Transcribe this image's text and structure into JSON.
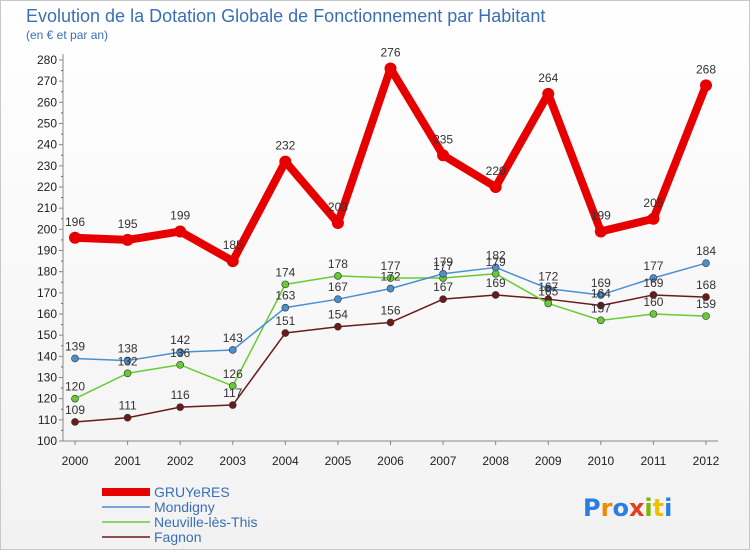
{
  "chart_data": {
    "type": "line",
    "title": "Evolution de la Dotation Globale de Fonctionnement par Habitant",
    "subtitle": "(en € et par an)",
    "x": [
      "2000",
      "2001",
      "2002",
      "2003",
      "2004",
      "2005",
      "2006",
      "2007",
      "2008",
      "2009",
      "2010",
      "2011",
      "2012"
    ],
    "ylim": [
      100,
      280
    ],
    "yticks": [
      100,
      110,
      120,
      130,
      140,
      150,
      160,
      170,
      180,
      190,
      200,
      210,
      220,
      230,
      240,
      250,
      260,
      270,
      280
    ],
    "grid": false,
    "legend_position": "bottom-left",
    "series": [
      {
        "name": "GRUYeRES",
        "color": "#e60000",
        "values": [
          196,
          195,
          199,
          185,
          232,
          203,
          276,
          235,
          220,
          264,
          199,
          205,
          268
        ]
      },
      {
        "name": "Mondigny",
        "color": "#4a90d0",
        "values": [
          139,
          138,
          142,
          143,
          163,
          167,
          172,
          179,
          182,
          172,
          169,
          177,
          184
        ]
      },
      {
        "name": "Neuville-lès-This",
        "color": "#66cc33",
        "values": [
          120,
          132,
          136,
          126,
          174,
          178,
          177,
          177,
          179,
          165,
          157,
          160,
          159
        ]
      },
      {
        "name": "Fagnon",
        "color": "#6b1a1a",
        "values": [
          109,
          111,
          116,
          117,
          151,
          154,
          156,
          167,
          169,
          167,
          164,
          169,
          168
        ]
      }
    ]
  },
  "logo": {
    "text": "Proxiti"
  }
}
